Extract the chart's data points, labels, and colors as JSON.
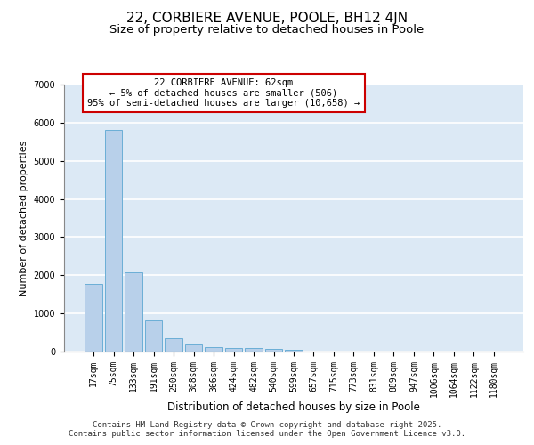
{
  "title_line1": "22, CORBIERE AVENUE, POOLE, BH12 4JN",
  "title_line2": "Size of property relative to detached houses in Poole",
  "xlabel": "Distribution of detached houses by size in Poole",
  "ylabel": "Number of detached properties",
  "categories": [
    "17sqm",
    "75sqm",
    "133sqm",
    "191sqm",
    "250sqm",
    "308sqm",
    "366sqm",
    "424sqm",
    "482sqm",
    "540sqm",
    "599sqm",
    "657sqm",
    "715sqm",
    "773sqm",
    "831sqm",
    "889sqm",
    "947sqm",
    "1006sqm",
    "1064sqm",
    "1122sqm",
    "1180sqm"
  ],
  "values": [
    1780,
    5820,
    2080,
    820,
    340,
    190,
    115,
    95,
    90,
    75,
    55,
    0,
    0,
    0,
    0,
    0,
    0,
    0,
    0,
    0,
    0
  ],
  "bar_color": "#b8d0ea",
  "bar_edge_color": "#6baed6",
  "annotation_text": "22 CORBIERE AVENUE: 62sqm\n← 5% of detached houses are smaller (506)\n95% of semi-detached houses are larger (10,658) →",
  "annotation_box_facecolor": "#ffffff",
  "annotation_box_edgecolor": "#cc0000",
  "ylim": [
    0,
    7000
  ],
  "yticks": [
    0,
    1000,
    2000,
    3000,
    4000,
    5000,
    6000,
    7000
  ],
  "background_color": "#dce9f5",
  "grid_color": "#ffffff",
  "footer_line1": "Contains HM Land Registry data © Crown copyright and database right 2025.",
  "footer_line2": "Contains public sector information licensed under the Open Government Licence v3.0.",
  "title_fontsize": 11,
  "subtitle_fontsize": 9.5,
  "ylabel_fontsize": 8,
  "xlabel_fontsize": 8.5,
  "tick_fontsize": 7,
  "annotation_fontsize": 7.5,
  "footer_fontsize": 6.5
}
